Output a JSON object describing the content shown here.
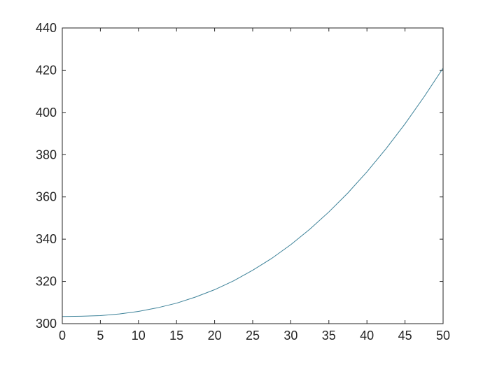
{
  "window": {
    "background": "#ffffff"
  },
  "chart_data": {
    "type": "line",
    "title": "",
    "xlabel": "",
    "ylabel": "",
    "x": [
      0,
      2.5,
      5,
      7.5,
      10,
      12.5,
      15,
      17.5,
      20,
      22.5,
      25,
      27.5,
      30,
      32.5,
      35,
      37.5,
      40,
      42.5,
      45,
      47.5,
      50
    ],
    "y": [
      303.4,
      303.5,
      303.8,
      304.6,
      305.8,
      307.5,
      309.7,
      312.6,
      316.1,
      320.3,
      325.3,
      330.9,
      337.4,
      344.7,
      352.9,
      361.9,
      371.9,
      382.8,
      394.6,
      407.4,
      421.0
    ],
    "xlim": [
      0,
      50
    ],
    "ylim": [
      300,
      440
    ],
    "xticks": [
      0,
      5,
      10,
      15,
      20,
      25,
      30,
      35,
      40,
      45,
      50
    ],
    "yticks": [
      300,
      320,
      340,
      360,
      380,
      400,
      420,
      440
    ],
    "line_color": "#3d8299",
    "axis_color": "#262626",
    "tick_label_color": "#262626",
    "grid": false,
    "box": true,
    "tick_direction": "in",
    "legend": null
  }
}
